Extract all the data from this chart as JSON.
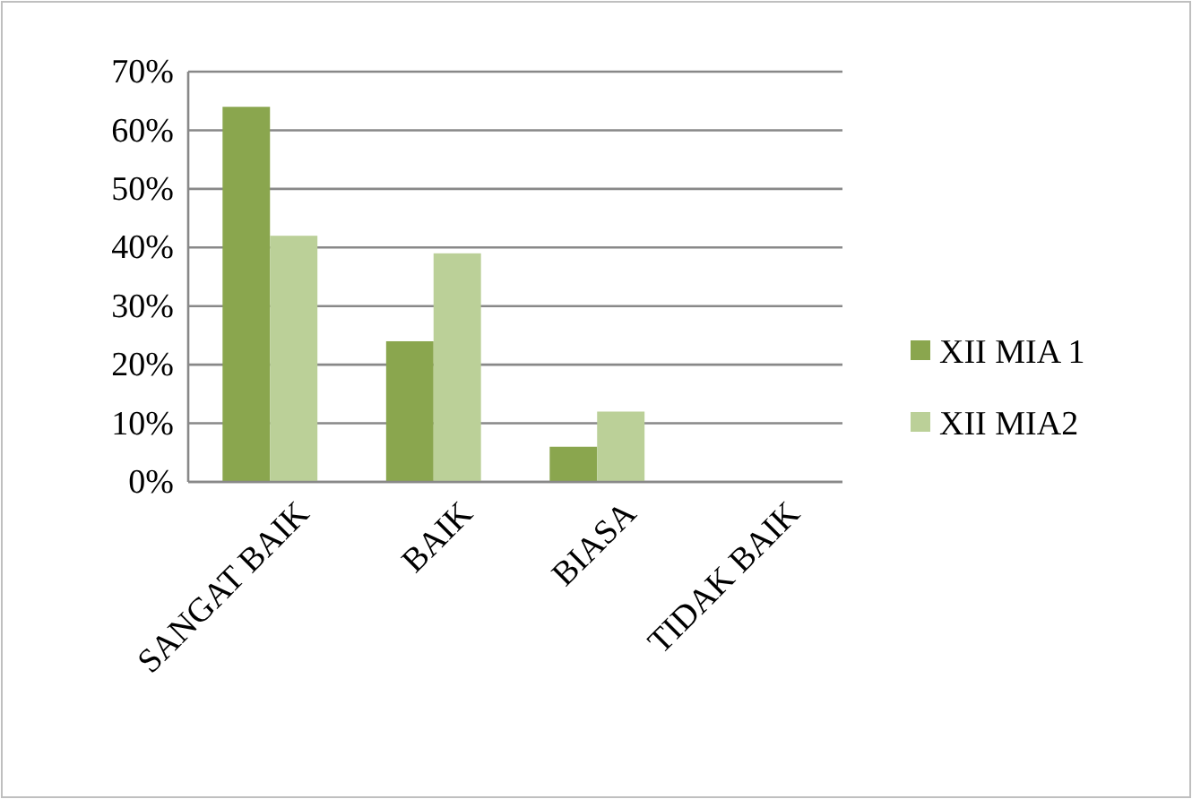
{
  "chart_data": {
    "type": "bar",
    "categories": [
      "SANGAT BAIK",
      "BAIK",
      "BIASA",
      "TIDAK BAIK"
    ],
    "series": [
      {
        "name": "XII MIA 1",
        "color": "#8aa64e",
        "values": [
          64,
          24,
          6,
          0
        ]
      },
      {
        "name": "XII MIA2",
        "color": "#bbd098",
        "values": [
          42,
          39,
          12,
          0
        ]
      }
    ],
    "ylim": [
      0,
      70
    ],
    "yticks": [
      {
        "value": 0,
        "label": "0%"
      },
      {
        "value": 10,
        "label": "10%"
      },
      {
        "value": 20,
        "label": "20%"
      },
      {
        "value": 30,
        "label": "30%"
      },
      {
        "value": 40,
        "label": "40%"
      },
      {
        "value": 50,
        "label": "50%"
      },
      {
        "value": 60,
        "label": "60%"
      },
      {
        "value": 70,
        "label": "70%"
      }
    ],
    "grid": "y",
    "legend": "right"
  }
}
